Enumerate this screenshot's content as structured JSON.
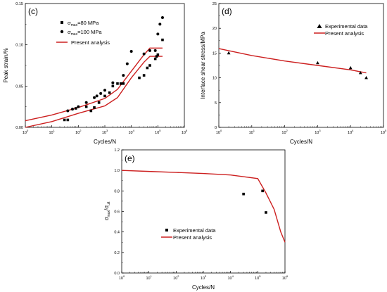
{
  "colors": {
    "model": "#cc1f1f",
    "marker": "#000000",
    "axis": "#000000"
  },
  "panels": [
    {
      "id": "c",
      "tag": "(c)",
      "xlabel": "Cycles/N",
      "ylabel": "Peak strain/%",
      "xscale": "log",
      "x_exponents": [
        0,
        1,
        2,
        3,
        4,
        5,
        6
      ],
      "ylim": [
        0.0,
        0.15
      ],
      "y_ticks": [
        "0.00",
        "0.05",
        "0.10",
        "0.15"
      ],
      "y_ticks_v": [
        0.0,
        0.05,
        0.1,
        0.15
      ],
      "legend": {
        "placement": "top-left",
        "items": [
          {
            "kind": "square",
            "sym": "σ",
            "sub": "max",
            "tail": "=80 MPa"
          },
          {
            "kind": "circle",
            "sym": "σ",
            "sub": "max",
            "tail": "=100 MPa"
          },
          {
            "kind": "line",
            "label": "Present analysis"
          }
        ]
      },
      "chart_data": {
        "type": "scatter",
        "series": [
          {
            "marker": "square",
            "points": [
              [
                30,
                0.009
              ],
              [
                40,
                0.009
              ],
              [
                80,
                0.023
              ],
              [
                200,
                0.025
              ],
              [
                300,
                0.02
              ],
              [
                400,
                0.024
              ],
              [
                600,
                0.03
              ],
              [
                1000,
                0.038
              ],
              [
                1500,
                0.042
              ],
              [
                2000,
                0.05
              ],
              [
                3000,
                0.053
              ],
              [
                4000,
                0.053
              ],
              [
                5000,
                0.053
              ],
              [
                20000,
                0.06
              ],
              [
                30000,
                0.063
              ],
              [
                40000,
                0.072
              ],
              [
                50000,
                0.075
              ],
              [
                80000,
                0.083
              ],
              [
                90000,
                0.086
              ],
              [
                100000,
                0.088
              ],
              [
                150000,
                0.106
              ]
            ]
          },
          {
            "marker": "circle",
            "points": [
              [
                40,
                0.02
              ],
              [
                60,
                0.022
              ],
              [
                100,
                0.025
              ],
              [
                200,
                0.03
              ],
              [
                400,
                0.036
              ],
              [
                500,
                0.038
              ],
              [
                700,
                0.041
              ],
              [
                1000,
                0.045
              ],
              [
                2000,
                0.054
              ],
              [
                5000,
                0.063
              ],
              [
                7000,
                0.077
              ],
              [
                10000,
                0.092
              ],
              [
                30000,
                0.089
              ],
              [
                50000,
                0.093
              ],
              [
                80000,
                0.093
              ],
              [
                100000,
                0.113
              ],
              [
                120000,
                0.125
              ],
              [
                150000,
                0.133
              ]
            ]
          }
        ],
        "lines": [
          {
            "points": [
              [
                1,
                0.008
              ],
              [
                10,
                0.015
              ],
              [
                100,
                0.024
              ],
              [
                1000,
                0.035
              ],
              [
                3000,
                0.046
              ],
              [
                10000,
                0.068
              ],
              [
                30000,
                0.088
              ],
              [
                50000,
                0.096
              ],
              [
                100000,
                0.096
              ],
              [
                150000,
                0.096
              ]
            ]
          },
          {
            "points": [
              [
                1,
                0.0
              ],
              [
                10,
                0.007
              ],
              [
                100,
                0.017
              ],
              [
                1000,
                0.026
              ],
              [
                3000,
                0.036
              ],
              [
                10000,
                0.06
              ],
              [
                30000,
                0.079
              ],
              [
                50000,
                0.086
              ],
              [
                100000,
                0.086
              ],
              [
                150000,
                0.086
              ]
            ]
          }
        ]
      }
    },
    {
      "id": "d",
      "tag": "(d)",
      "xlabel": "Cycles/N",
      "ylabel": "Interface shear stress/MPa",
      "xscale": "log",
      "x_exponents": [
        0,
        1,
        2,
        3,
        4,
        5
      ],
      "ylim": [
        0,
        25
      ],
      "y_ticks": [
        "0",
        "5",
        "10",
        "15",
        "20",
        "25"
      ],
      "y_ticks_v": [
        0,
        5,
        10,
        15,
        20,
        25
      ],
      "legend": {
        "placement": "top-right",
        "items": [
          {
            "kind": "triangle",
            "label": "Experimental data"
          },
          {
            "kind": "line",
            "label": "Present analysis"
          }
        ]
      },
      "chart_data": {
        "type": "scatter",
        "series": [
          {
            "marker": "triangle",
            "points": [
              [
                2,
                15.0
              ],
              [
                1000,
                13.0
              ],
              [
                10000,
                12.0
              ],
              [
                20000,
                11.0
              ],
              [
                30000,
                10.0
              ]
            ]
          }
        ],
        "lines": [
          {
            "points": [
              [
                1,
                15.9
              ],
              [
                10,
                14.5
              ],
              [
                100,
                13.4
              ],
              [
                1000,
                12.5
              ],
              [
                10000,
                11.6
              ],
              [
                30000,
                11.0
              ]
            ]
          }
        ]
      }
    },
    {
      "id": "e",
      "tag": "(e)",
      "xlabel": "Cycles/N",
      "ylabel_sym1": "σ",
      "ylabel_sub1": "max",
      "ylabel_mid": "/σ",
      "ylabel_sub2": "ult",
      "xscale": "log",
      "x_exponents": [
        0,
        1,
        2,
        3,
        4,
        5,
        6
      ],
      "ylim": [
        0.0,
        1.2
      ],
      "y_ticks": [
        "0.0",
        "0.2",
        "0.4",
        "0.6",
        "0.8",
        "1.0",
        "1.2"
      ],
      "y_ticks_v": [
        0.0,
        0.2,
        0.4,
        0.6,
        0.8,
        1.0,
        1.2
      ],
      "legend": {
        "placement": "center-left",
        "items": [
          {
            "kind": "square",
            "label": "Experimental data"
          },
          {
            "kind": "line",
            "label": "Present analysis"
          }
        ]
      },
      "chart_data": {
        "type": "scatter",
        "series": [
          {
            "marker": "square",
            "points": [
              [
                30000,
                0.77
              ],
              [
                150000,
                0.8
              ],
              [
                200000,
                0.59
              ]
            ]
          }
        ],
        "lines": [
          {
            "points": [
              [
                1,
                1.0
              ],
              [
                10,
                0.99
              ],
              [
                100,
                0.98
              ],
              [
                1000,
                0.97
              ],
              [
                10000,
                0.955
              ],
              [
                100000,
                0.92
              ],
              [
                200000,
                0.78
              ],
              [
                400000,
                0.62
              ],
              [
                700000,
                0.4
              ],
              [
                1000000,
                0.3
              ]
            ]
          }
        ]
      }
    }
  ]
}
